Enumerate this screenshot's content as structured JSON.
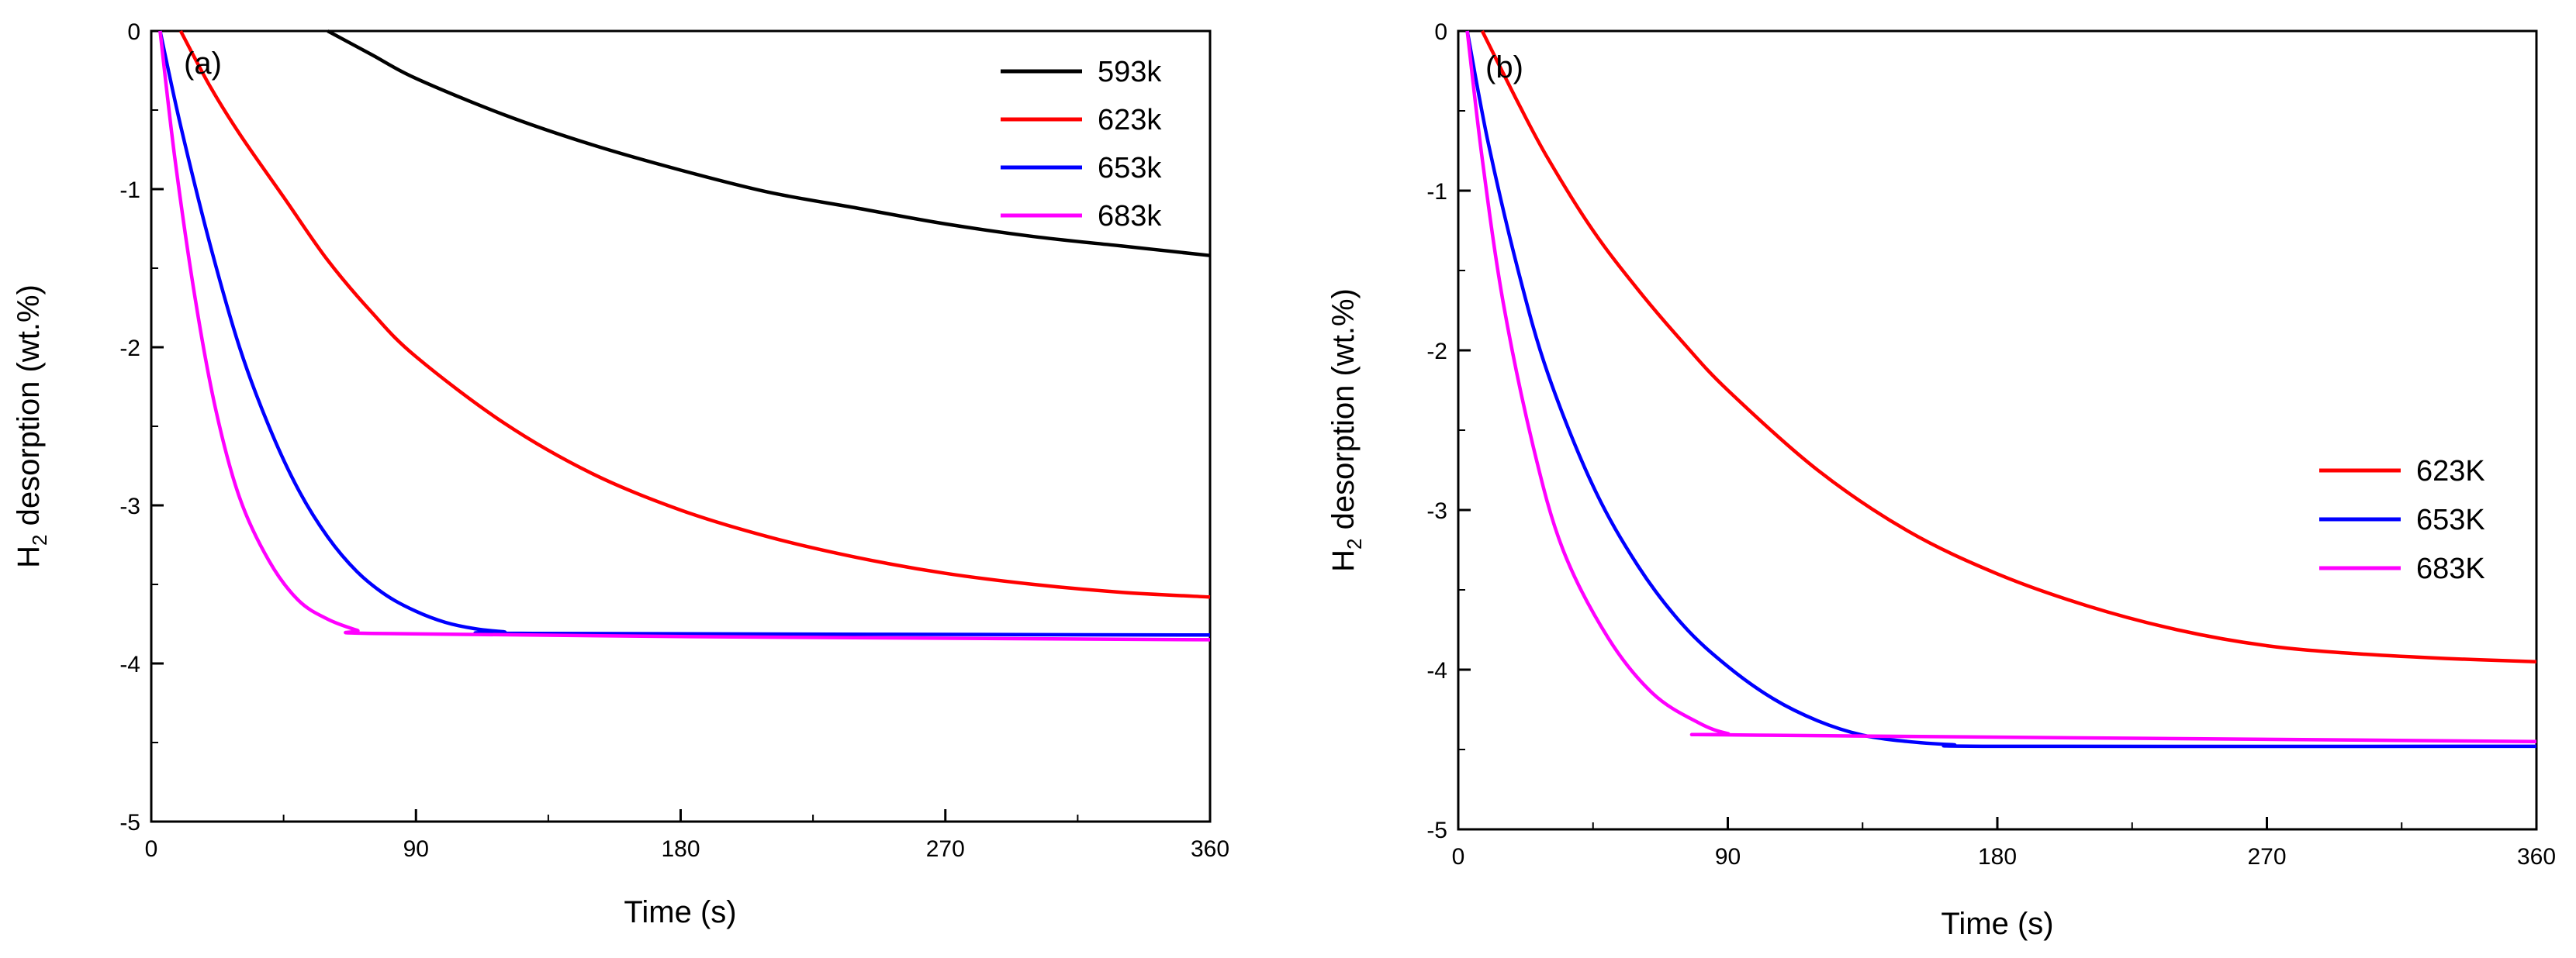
{
  "chart_data": [
    {
      "type": "line",
      "panel_label": "(a)",
      "xlabel": "Time (s)",
      "ylabel_main": "H",
      "ylabel_sub": "2",
      "ylabel_rest": " desorption (wt.%)",
      "xlim": [
        0,
        360
      ],
      "ylim": [
        -5,
        0
      ],
      "xticks": [
        0,
        90,
        180,
        270,
        360
      ],
      "yticks": [
        0,
        -1,
        -2,
        -3,
        -4,
        -5
      ],
      "legend_position": "top-right",
      "series": [
        {
          "name": "593k",
          "color": "#000000",
          "points": [
            [
              60,
              0
            ],
            [
              75,
              -0.15
            ],
            [
              90,
              -0.3
            ],
            [
              120,
              -0.53
            ],
            [
              150,
              -0.72
            ],
            [
              180,
              -0.88
            ],
            [
              210,
              -1.02
            ],
            [
              240,
              -1.12
            ],
            [
              270,
              -1.22
            ],
            [
              300,
              -1.3
            ],
            [
              330,
              -1.36
            ],
            [
              360,
              -1.42
            ]
          ]
        },
        {
          "name": "623k",
          "color": "#ff0000",
          "points": [
            [
              10,
              0
            ],
            [
              20,
              -0.35
            ],
            [
              30,
              -0.65
            ],
            [
              45,
              -1.05
            ],
            [
              60,
              -1.45
            ],
            [
              75,
              -1.78
            ],
            [
              90,
              -2.06
            ],
            [
              120,
              -2.48
            ],
            [
              150,
              -2.8
            ],
            [
              180,
              -3.03
            ],
            [
              210,
              -3.2
            ],
            [
              240,
              -3.33
            ],
            [
              270,
              -3.43
            ],
            [
              300,
              -3.5
            ],
            [
              330,
              -3.55
            ],
            [
              360,
              -3.58
            ]
          ]
        },
        {
          "name": "653k",
          "color": "#0000ff",
          "points": [
            [
              3,
              0
            ],
            [
              10,
              -0.6
            ],
            [
              20,
              -1.35
            ],
            [
              30,
              -2.0
            ],
            [
              40,
              -2.5
            ],
            [
              50,
              -2.9
            ],
            [
              60,
              -3.2
            ],
            [
              70,
              -3.42
            ],
            [
              80,
              -3.57
            ],
            [
              90,
              -3.67
            ],
            [
              100,
              -3.74
            ],
            [
              110,
              -3.78
            ],
            [
              120,
              -3.8
            ],
            [
              130,
              -3.81
            ],
            [
              360,
              -3.82
            ]
          ]
        },
        {
          "name": "683k",
          "color": "#ff00ff",
          "points": [
            [
              3,
              0
            ],
            [
              8,
              -0.8
            ],
            [
              15,
              -1.7
            ],
            [
              22,
              -2.4
            ],
            [
              30,
              -2.95
            ],
            [
              40,
              -3.35
            ],
            [
              50,
              -3.6
            ],
            [
              60,
              -3.72
            ],
            [
              70,
              -3.79
            ],
            [
              75,
              -3.81
            ],
            [
              180,
              -3.83
            ],
            [
              360,
              -3.85
            ]
          ]
        }
      ]
    },
    {
      "type": "line",
      "panel_label": "(b)",
      "xlabel": "Time (s)",
      "ylabel_main": "H",
      "ylabel_sub": "2",
      "ylabel_rest": " desorption (wt.%)",
      "xlim": [
        0,
        360
      ],
      "ylim": [
        -5,
        0
      ],
      "xticks": [
        0,
        90,
        180,
        270,
        360
      ],
      "yticks": [
        0,
        -1,
        -2,
        -3,
        -4,
        -5
      ],
      "legend_position": "center-right",
      "series": [
        {
          "name": "623K",
          "color": "#ff0000",
          "points": [
            [
              8,
              0
            ],
            [
              20,
              -0.45
            ],
            [
              30,
              -0.8
            ],
            [
              45,
              -1.25
            ],
            [
              60,
              -1.62
            ],
            [
              75,
              -1.95
            ],
            [
              90,
              -2.25
            ],
            [
              120,
              -2.75
            ],
            [
              150,
              -3.13
            ],
            [
              180,
              -3.4
            ],
            [
              210,
              -3.6
            ],
            [
              240,
              -3.75
            ],
            [
              270,
              -3.85
            ],
            [
              300,
              -3.9
            ],
            [
              330,
              -3.93
            ],
            [
              360,
              -3.95
            ]
          ]
        },
        {
          "name": "653K",
          "color": "#0000ff",
          "points": [
            [
              3,
              0
            ],
            [
              10,
              -0.7
            ],
            [
              20,
              -1.5
            ],
            [
              30,
              -2.15
            ],
            [
              45,
              -2.85
            ],
            [
              60,
              -3.35
            ],
            [
              75,
              -3.72
            ],
            [
              90,
              -3.98
            ],
            [
              105,
              -4.18
            ],
            [
              120,
              -4.32
            ],
            [
              135,
              -4.41
            ],
            [
              150,
              -4.45
            ],
            [
              165,
              -4.47
            ],
            [
              180,
              -4.48
            ],
            [
              360,
              -4.48
            ]
          ]
        },
        {
          "name": "683K",
          "color": "#ff00ff",
          "points": [
            [
              3,
              0
            ],
            [
              8,
              -0.8
            ],
            [
              15,
              -1.7
            ],
            [
              25,
              -2.6
            ],
            [
              35,
              -3.25
            ],
            [
              50,
              -3.8
            ],
            [
              65,
              -4.15
            ],
            [
              80,
              -4.33
            ],
            [
              90,
              -4.4
            ],
            [
              100,
              -4.41
            ],
            [
              360,
              -4.45
            ]
          ]
        }
      ]
    }
  ]
}
